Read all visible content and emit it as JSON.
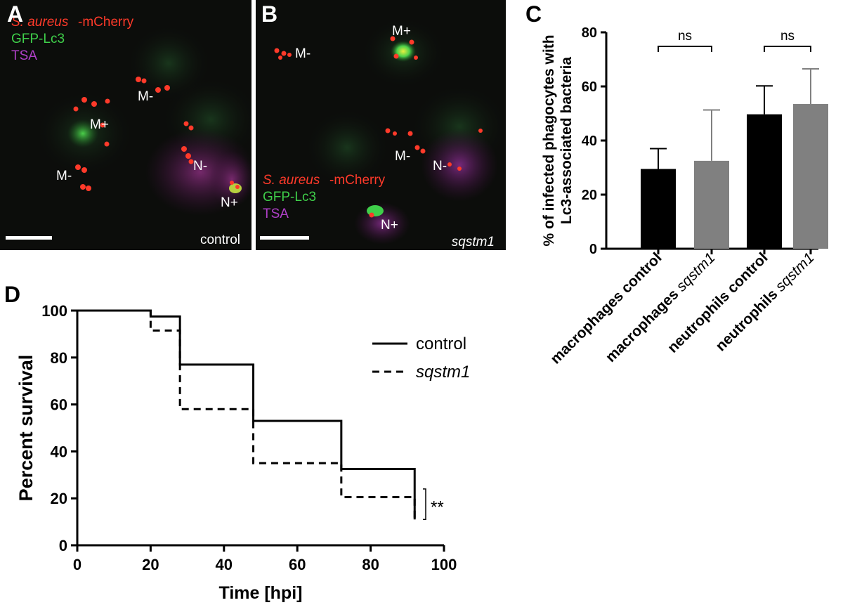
{
  "panels": {
    "A": {
      "letter": "A",
      "legend": {
        "species": "S. aureus",
        "species_suffix": "-mCherry",
        "gfp": "GFP-Lc3",
        "tsa": "TSA"
      },
      "labels": [
        "M-",
        "M+",
        "M-",
        "N-",
        "N+"
      ],
      "condition": "control"
    },
    "B": {
      "letter": "B",
      "legend": {
        "species": "S. aureus",
        "species_suffix": "-mCherry",
        "gfp": "GFP-Lc3",
        "tsa": "TSA"
      },
      "labels": [
        "M-",
        "M+",
        "M-",
        "N-",
        "N+"
      ],
      "condition": "sqstm1"
    },
    "C": {
      "letter": "C"
    },
    "D": {
      "letter": "D"
    }
  },
  "colors": {
    "mcherry": "#ff3a2a",
    "gfp": "#3fcf4a",
    "tsa": "#b040c8",
    "control_bar": "#000000",
    "sqstm1_bar": "#808080"
  },
  "chart_data": [
    {
      "type": "bar",
      "ylabel_line1": "% of infected phagocytes with",
      "ylabel_line2": "Lc3-associated bacteria",
      "ylim": [
        0,
        80
      ],
      "yticks": [
        0,
        20,
        40,
        60,
        80
      ],
      "categories": [
        {
          "cell": "macrophages",
          "cond": "control",
          "cond_italic": false
        },
        {
          "cell": "macrophages",
          "cond": "sqstm1",
          "cond_italic": true
        },
        {
          "cell": "neutrophils",
          "cond": "control",
          "cond_italic": false
        },
        {
          "cell": "neutrophils",
          "cond": "sqstm1",
          "cond_italic": true
        }
      ],
      "values": [
        29.5,
        32.5,
        49.7,
        53.5
      ],
      "errors": [
        7.5,
        18.8,
        10.5,
        13.0
      ],
      "bar_colors": [
        "#000000",
        "#808080",
        "#000000",
        "#808080"
      ],
      "comparisons": [
        {
          "from": 0,
          "to": 1,
          "label": "ns"
        },
        {
          "from": 2,
          "to": 3,
          "label": "ns"
        }
      ]
    },
    {
      "type": "line",
      "xlabel": "Time [hpi]",
      "ylabel": "Percent survival",
      "xlim": [
        0,
        100
      ],
      "ylim": [
        0,
        100
      ],
      "xticks": [
        0,
        20,
        40,
        60,
        80,
        100
      ],
      "yticks": [
        0,
        20,
        40,
        60,
        80,
        100
      ],
      "series": [
        {
          "name": "control",
          "italic": false,
          "dashed": false,
          "steps": [
            [
              0,
              100
            ],
            [
              20,
              97.5
            ],
            [
              28,
              77
            ],
            [
              48,
              53
            ],
            [
              72,
              32.5
            ],
            [
              92,
              11
            ]
          ]
        },
        {
          "name": "sqstm1",
          "italic": true,
          "dashed": true,
          "steps": [
            [
              0,
              100
            ],
            [
              20,
              91.5
            ],
            [
              28,
              58
            ],
            [
              48,
              35
            ],
            [
              72,
              20.5
            ],
            [
              92,
              11
            ]
          ]
        }
      ],
      "significance": "**"
    }
  ]
}
